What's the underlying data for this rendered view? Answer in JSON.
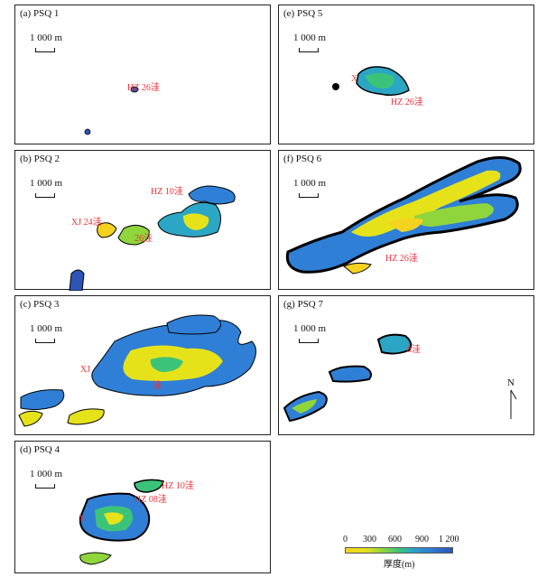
{
  "panels": [
    {
      "title": "(a) PSQ 1",
      "scale": "1 000 m",
      "labels": [
        "HZ 26洼"
      ]
    },
    {
      "title": "(b) PSQ 2",
      "scale": "1 000 m",
      "labels": [
        "HZ 10洼",
        "XJ 24洼",
        "26洼"
      ]
    },
    {
      "title": "(c) PSQ 3",
      "scale": "1 000 m",
      "labels": [
        "XJ",
        "洼"
      ]
    },
    {
      "title": "(d) PSQ 4",
      "scale": "1 000 m",
      "labels": [
        "HZ 10洼",
        "HZ 08洼",
        "X"
      ]
    },
    {
      "title": "(e) PSQ 5",
      "scale": "1 000 m",
      "labels": [
        "X",
        "HZ 26洼"
      ]
    },
    {
      "title": "(f) PSQ 6",
      "scale": "1 000 m",
      "labels": [
        "HZ 26洼"
      ]
    },
    {
      "title": "(g) PSQ 7",
      "scale": "1 000 m",
      "labels": [
        "8洼"
      ]
    }
  ],
  "legend": {
    "ticks": [
      "0",
      "300",
      "600",
      "900",
      "1 200"
    ],
    "title": "厚度(m)",
    "colors": [
      "#f6d220",
      "#8fd53c",
      "#3cc37a",
      "#2ba6c4",
      "#2d55b8"
    ]
  },
  "north_label": "N"
}
